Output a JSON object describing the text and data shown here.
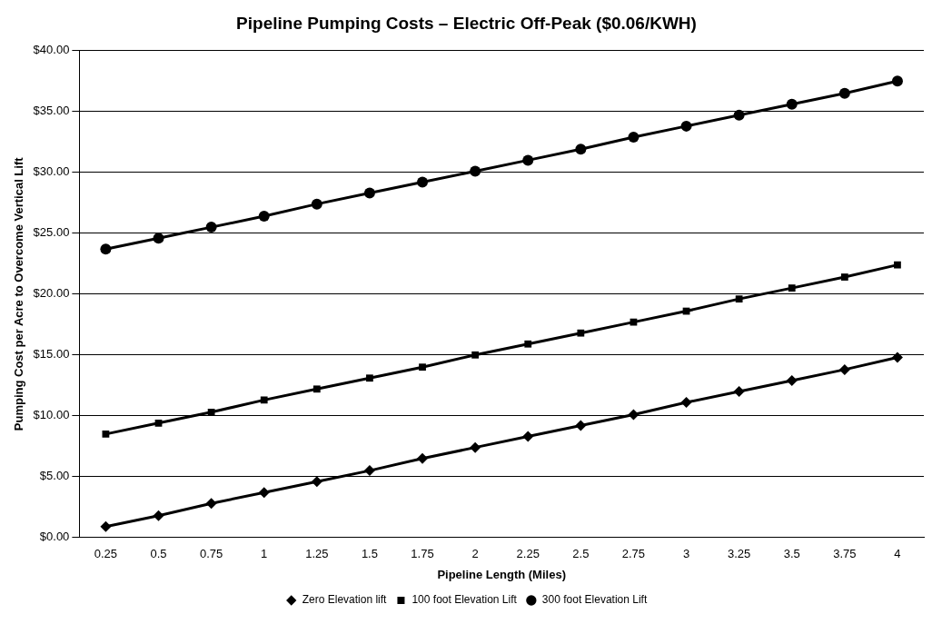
{
  "chart_data": {
    "type": "line",
    "title": "Pipeline Pumping Costs – Electric Off-Peak ($0.06/KWH)",
    "xlabel": "Pipeline Length (Miles)",
    "ylabel": "Pumping Cost per Acre to Overcome Vertical Lift",
    "categories": [
      "0.25",
      "0.5",
      "0.75",
      "1",
      "1.25",
      "1.5",
      "1.75",
      "2",
      "2.25",
      "2.5",
      "2.75",
      "3",
      "3.25",
      "3.5",
      "3.75",
      "4"
    ],
    "series": [
      {
        "name": "Zero Elevation lift",
        "color": "#000000",
        "marker": "diamond",
        "values": [
          0.9,
          1.8,
          2.8,
          3.7,
          4.6,
          5.5,
          6.5,
          7.4,
          8.3,
          9.2,
          10.1,
          11.1,
          12.0,
          12.9,
          13.8,
          14.8
        ]
      },
      {
        "name": "100 foot Elevation Lift",
        "color": "#000000",
        "marker": "square",
        "values": [
          8.5,
          9.4,
          10.3,
          11.3,
          12.2,
          13.1,
          14.0,
          15.0,
          15.9,
          16.8,
          17.7,
          18.6,
          19.6,
          20.5,
          21.4,
          22.4
        ]
      },
      {
        "name": "300 foot Elevation Lift",
        "color": "#000000",
        "marker": "circle",
        "values": [
          23.7,
          24.6,
          25.5,
          26.4,
          27.4,
          28.3,
          29.2,
          30.1,
          31.0,
          31.9,
          32.9,
          33.8,
          34.7,
          35.6,
          36.5,
          37.5
        ]
      }
    ],
    "ylim": [
      0,
      40
    ],
    "yticks": [
      {
        "value": 0,
        "label": "$0.00"
      },
      {
        "value": 5,
        "label": "$5.00"
      },
      {
        "value": 10,
        "label": "$10.00"
      },
      {
        "value": 15,
        "label": "$15.00"
      },
      {
        "value": 20,
        "label": "$20.00"
      },
      {
        "value": 25,
        "label": "$25.00"
      },
      {
        "value": 30,
        "label": "$30.00"
      },
      {
        "value": 35,
        "label": "$35.00"
      },
      {
        "value": 40,
        "label": "$40.00"
      }
    ],
    "grid": "y",
    "legend": "bottom",
    "line_style": "solid"
  }
}
